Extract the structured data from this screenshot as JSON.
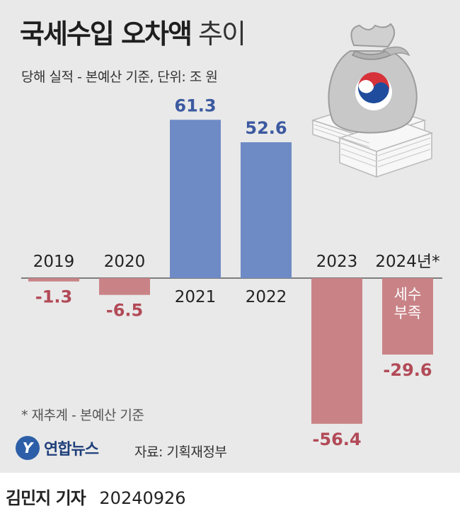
{
  "title_main": "국세수입 오차액",
  "title_suffix": "추이",
  "subtitle": "당해 실적 - 본예산 기준, 단위: 조 원",
  "footnote": "* 재추계 - 본예산 기준",
  "source": "자료: 기획재정부",
  "logo_text": "연합뉴스",
  "logo_mark": "Y",
  "byline_name": "김민지 기자",
  "byline_date": "20240926",
  "illustration_icon": "money-bag-with-cash-stack-icon",
  "colors": {
    "positive": "#6e8bc6",
    "negative": "#c98387",
    "positive_label": "#3c5aa0",
    "negative_label": "#b24a57",
    "background": "#e9e9e9"
  },
  "chart_data": {
    "type": "bar",
    "title": "국세수입 오차액 추이",
    "unit": "조 원",
    "categories": [
      "2019",
      "2020",
      "2021",
      "2022",
      "2023",
      "2024년*"
    ],
    "values": [
      -1.3,
      -6.5,
      61.3,
      52.6,
      -56.4,
      -29.6
    ],
    "value_labels": [
      "-1.3",
      "-6.5",
      "61.3",
      "52.6",
      "-56.4",
      "-29.6"
    ],
    "annotations": [
      {
        "category": "2024년*",
        "text_lines": [
          "세수",
          "부족"
        ]
      }
    ],
    "ylim": [
      -56.4,
      61.3
    ],
    "grid": false,
    "legend": "none"
  }
}
